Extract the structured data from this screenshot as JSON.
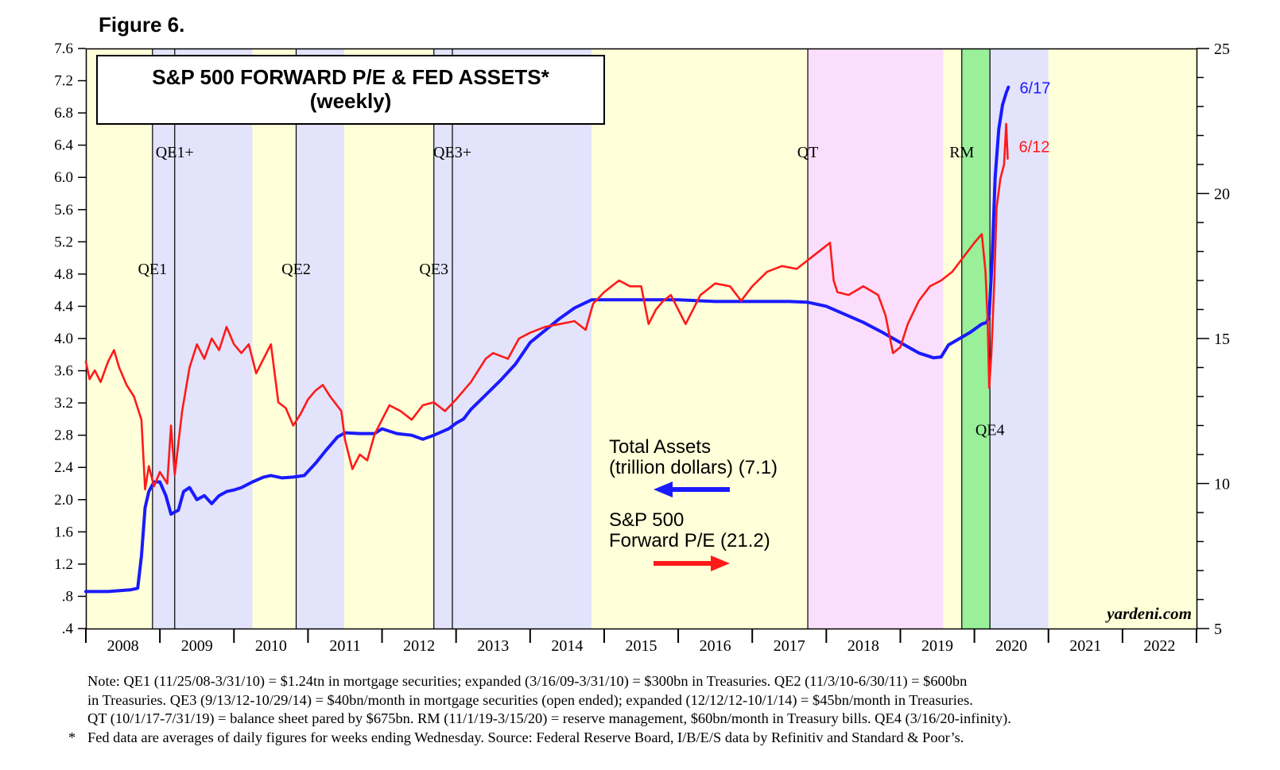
{
  "figure_label": "Figure 6.",
  "notes": [
    "Note: QE1 (11/25/08-3/31/10) = $1.24tn in mortgage securities; expanded (3/16/09-3/31/10) = $300bn in Treasuries. QE2 (11/3/10-6/30/11) = $600bn",
    "in Treasuries. QE3 (9/13/12-10/29/14) = $40bn/month in mortgage securities (open ended); expanded (12/12/12-10/1/14) = $45bn/month in Treasuries.",
    "QT (10/1/17-7/31/19) = balance sheet pared by $675bn. RM (11/1/19-3/15/20) = reserve management, $60bn/month in Treasury bills. QE4 (3/16/20-infinity)."
  ],
  "footnote_marker": "*",
  "footnote": "Fed data are averages of daily figures for weeks ending Wednesday. Source: Federal Reserve Board, I/B/E/S data by Refinitiv and Standard & Poor’s.",
  "colors": {
    "assets": "#1a1aff",
    "pe": "#ff1a1a",
    "yellow_band": "#ffffd9",
    "blue_band": "#e3e3fb",
    "pink_band": "#fbdefb",
    "green_band": "#99f099"
  },
  "chart_data": {
    "type": "line",
    "title": "S&P 500 FORWARD P/E & FED ASSETS*",
    "subtitle": "(weekly)",
    "watermark": "yardeni.com",
    "x_ticks": [
      "2008",
      "2009",
      "2010",
      "2011",
      "2012",
      "2013",
      "2014",
      "2015",
      "2016",
      "2017",
      "2018",
      "2019",
      "2020",
      "2021",
      "2022"
    ],
    "xlim": [
      2008.0,
      2023.0
    ],
    "y_left": {
      "lim": [
        0.4,
        7.6
      ],
      "ticks": [
        7.6,
        7.2,
        6.8,
        6.4,
        6.0,
        5.6,
        5.2,
        4.8,
        4.4,
        4.0,
        3.6,
        3.2,
        2.8,
        2.4,
        2.0,
        1.6,
        1.2,
        0.8,
        0.4
      ],
      "tick_labels": [
        "7.6",
        "7.2",
        "6.8",
        "6.4",
        "6.0",
        "5.6",
        "5.2",
        "4.8",
        "4.4",
        "4.0",
        "3.6",
        "3.2",
        "2.8",
        "2.4",
        "2.0",
        "1.6",
        "1.2",
        ".8",
        ".4"
      ]
    },
    "y_right": {
      "lim": [
        5,
        25
      ],
      "ticks": [
        25,
        20,
        15,
        10,
        5
      ],
      "tick_labels": [
        "25",
        "20",
        "15",
        "10",
        "5"
      ]
    },
    "periods": [
      {
        "start": 2008.0,
        "end": 2008.9,
        "color": "yellow"
      },
      {
        "start": 2008.9,
        "end": 2010.25,
        "color": "blue"
      },
      {
        "start": 2010.25,
        "end": 2010.84,
        "color": "yellow"
      },
      {
        "start": 2010.84,
        "end": 2011.49,
        "color": "blue"
      },
      {
        "start": 2011.49,
        "end": 2012.7,
        "color": "yellow"
      },
      {
        "start": 2012.7,
        "end": 2014.83,
        "color": "blue"
      },
      {
        "start": 2014.83,
        "end": 2017.75,
        "color": "yellow"
      },
      {
        "start": 2017.75,
        "end": 2019.58,
        "color": "pink"
      },
      {
        "start": 2019.58,
        "end": 2019.83,
        "color": "yellow"
      },
      {
        "start": 2019.83,
        "end": 2020.21,
        "color": "green"
      },
      {
        "start": 2020.21,
        "end": 2021.0,
        "color": "blue"
      },
      {
        "start": 2021.0,
        "end": 2023.0,
        "color": "yellow"
      }
    ],
    "events": [
      {
        "label": "QE1",
        "x": 2008.9,
        "label_y": 4.8
      },
      {
        "label": "QE1+",
        "x": 2009.2,
        "label_y": 6.25
      },
      {
        "label": "QE2",
        "x": 2010.84,
        "label_y": 4.8
      },
      {
        "label": "QE3",
        "x": 2012.7,
        "label_y": 4.8
      },
      {
        "label": "QE3+",
        "x": 2012.95,
        "label_y": 6.25
      },
      {
        "label": "QT",
        "x": 2017.75,
        "label_y": 6.25
      },
      {
        "label": "RM",
        "x": 2019.83,
        "label_y": 6.25
      },
      {
        "label": "QE4",
        "x": 2020.21,
        "label_y": 2.8
      }
    ],
    "series": [
      {
        "name": "Total Assets",
        "legend": [
          "Total Assets",
          "(trillion dollars) (7.1)"
        ],
        "axis": "left",
        "color": "#1a1aff",
        "end_label": "6/17",
        "points": [
          [
            2008.0,
            0.86
          ],
          [
            2008.3,
            0.86
          ],
          [
            2008.6,
            0.88
          ],
          [
            2008.7,
            0.9
          ],
          [
            2008.75,
            1.3
          ],
          [
            2008.8,
            1.9
          ],
          [
            2008.85,
            2.1
          ],
          [
            2008.92,
            2.22
          ],
          [
            2009.0,
            2.22
          ],
          [
            2009.08,
            2.05
          ],
          [
            2009.15,
            1.82
          ],
          [
            2009.25,
            1.87
          ],
          [
            2009.32,
            2.1
          ],
          [
            2009.4,
            2.15
          ],
          [
            2009.5,
            2.0
          ],
          [
            2009.6,
            2.05
          ],
          [
            2009.7,
            1.95
          ],
          [
            2009.8,
            2.05
          ],
          [
            2009.9,
            2.1
          ],
          [
            2010.0,
            2.12
          ],
          [
            2010.1,
            2.15
          ],
          [
            2010.25,
            2.22
          ],
          [
            2010.4,
            2.28
          ],
          [
            2010.5,
            2.3
          ],
          [
            2010.65,
            2.27
          ],
          [
            2010.8,
            2.28
          ],
          [
            2010.95,
            2.3
          ],
          [
            2011.1,
            2.45
          ],
          [
            2011.25,
            2.62
          ],
          [
            2011.4,
            2.78
          ],
          [
            2011.5,
            2.83
          ],
          [
            2011.7,
            2.82
          ],
          [
            2011.9,
            2.82
          ],
          [
            2012.0,
            2.88
          ],
          [
            2012.2,
            2.82
          ],
          [
            2012.4,
            2.8
          ],
          [
            2012.55,
            2.75
          ],
          [
            2012.7,
            2.8
          ],
          [
            2012.9,
            2.88
          ],
          [
            2013.0,
            2.95
          ],
          [
            2013.1,
            3.0
          ],
          [
            2013.2,
            3.12
          ],
          [
            2013.4,
            3.3
          ],
          [
            2013.6,
            3.48
          ],
          [
            2013.8,
            3.68
          ],
          [
            2014.0,
            3.95
          ],
          [
            2014.2,
            4.1
          ],
          [
            2014.4,
            4.25
          ],
          [
            2014.6,
            4.38
          ],
          [
            2014.83,
            4.48
          ],
          [
            2015.0,
            4.48
          ],
          [
            2015.5,
            4.48
          ],
          [
            2016.0,
            4.48
          ],
          [
            2016.5,
            4.46
          ],
          [
            2017.0,
            4.46
          ],
          [
            2017.5,
            4.46
          ],
          [
            2017.75,
            4.45
          ],
          [
            2018.0,
            4.4
          ],
          [
            2018.25,
            4.3
          ],
          [
            2018.5,
            4.2
          ],
          [
            2018.75,
            4.08
          ],
          [
            2019.0,
            3.95
          ],
          [
            2019.25,
            3.82
          ],
          [
            2019.45,
            3.76
          ],
          [
            2019.55,
            3.77
          ],
          [
            2019.65,
            3.92
          ],
          [
            2019.8,
            4.0
          ],
          [
            2019.95,
            4.08
          ],
          [
            2020.1,
            4.18
          ],
          [
            2020.17,
            4.2
          ],
          [
            2020.2,
            4.3
          ],
          [
            2020.24,
            5.0
          ],
          [
            2020.28,
            6.0
          ],
          [
            2020.33,
            6.6
          ],
          [
            2020.38,
            6.9
          ],
          [
            2020.43,
            7.05
          ],
          [
            2020.46,
            7.12
          ]
        ]
      },
      {
        "name": "S&P 500 Forward P/E",
        "legend": [
          "S&P 500",
          "Forward P/E (21.2)"
        ],
        "axis": "right",
        "color": "#ff1a1a",
        "end_label": "6/12",
        "points": [
          [
            2008.0,
            14.2
          ],
          [
            2008.05,
            13.6
          ],
          [
            2008.12,
            13.9
          ],
          [
            2008.2,
            13.5
          ],
          [
            2008.3,
            14.2
          ],
          [
            2008.38,
            14.6
          ],
          [
            2008.45,
            14.0
          ],
          [
            2008.55,
            13.4
          ],
          [
            2008.65,
            13.0
          ],
          [
            2008.75,
            12.2
          ],
          [
            2008.8,
            9.8
          ],
          [
            2008.85,
            10.6
          ],
          [
            2008.92,
            9.9
          ],
          [
            2009.0,
            10.4
          ],
          [
            2009.1,
            10.0
          ],
          [
            2009.15,
            12.0
          ],
          [
            2009.2,
            10.3
          ],
          [
            2009.3,
            12.5
          ],
          [
            2009.4,
            14.0
          ],
          [
            2009.5,
            14.8
          ],
          [
            2009.6,
            14.3
          ],
          [
            2009.7,
            15.0
          ],
          [
            2009.8,
            14.6
          ],
          [
            2009.9,
            15.4
          ],
          [
            2010.0,
            14.8
          ],
          [
            2010.1,
            14.5
          ],
          [
            2010.2,
            14.8
          ],
          [
            2010.3,
            13.8
          ],
          [
            2010.4,
            14.3
          ],
          [
            2010.5,
            14.8
          ],
          [
            2010.6,
            12.8
          ],
          [
            2010.7,
            12.6
          ],
          [
            2010.8,
            12.0
          ],
          [
            2010.9,
            12.4
          ],
          [
            2011.0,
            12.9
          ],
          [
            2011.1,
            13.2
          ],
          [
            2011.2,
            13.4
          ],
          [
            2011.3,
            13.0
          ],
          [
            2011.45,
            12.5
          ],
          [
            2011.5,
            11.5
          ],
          [
            2011.6,
            10.5
          ],
          [
            2011.7,
            11.0
          ],
          [
            2011.8,
            10.8
          ],
          [
            2011.9,
            11.7
          ],
          [
            2012.0,
            12.2
          ],
          [
            2012.1,
            12.7
          ],
          [
            2012.25,
            12.5
          ],
          [
            2012.4,
            12.2
          ],
          [
            2012.55,
            12.7
          ],
          [
            2012.7,
            12.8
          ],
          [
            2012.85,
            12.5
          ],
          [
            2013.0,
            12.9
          ],
          [
            2013.2,
            13.5
          ],
          [
            2013.4,
            14.3
          ],
          [
            2013.5,
            14.5
          ],
          [
            2013.7,
            14.3
          ],
          [
            2013.85,
            15.0
          ],
          [
            2014.0,
            15.2
          ],
          [
            2014.2,
            15.4
          ],
          [
            2014.4,
            15.5
          ],
          [
            2014.6,
            15.6
          ],
          [
            2014.75,
            15.3
          ],
          [
            2014.85,
            16.2
          ],
          [
            2015.0,
            16.6
          ],
          [
            2015.2,
            17.0
          ],
          [
            2015.35,
            16.8
          ],
          [
            2015.5,
            16.8
          ],
          [
            2015.6,
            15.5
          ],
          [
            2015.7,
            16.0
          ],
          [
            2015.8,
            16.3
          ],
          [
            2015.9,
            16.5
          ],
          [
            2016.1,
            15.5
          ],
          [
            2016.3,
            16.5
          ],
          [
            2016.5,
            16.9
          ],
          [
            2016.7,
            16.8
          ],
          [
            2016.85,
            16.3
          ],
          [
            2017.0,
            16.8
          ],
          [
            2017.2,
            17.3
          ],
          [
            2017.4,
            17.5
          ],
          [
            2017.6,
            17.4
          ],
          [
            2017.8,
            17.8
          ],
          [
            2018.0,
            18.2
          ],
          [
            2018.05,
            18.3
          ],
          [
            2018.1,
            17.0
          ],
          [
            2018.15,
            16.6
          ],
          [
            2018.3,
            16.5
          ],
          [
            2018.5,
            16.8
          ],
          [
            2018.7,
            16.5
          ],
          [
            2018.8,
            15.8
          ],
          [
            2018.9,
            14.5
          ],
          [
            2019.0,
            14.7
          ],
          [
            2019.1,
            15.5
          ],
          [
            2019.25,
            16.3
          ],
          [
            2019.4,
            16.8
          ],
          [
            2019.55,
            17.0
          ],
          [
            2019.7,
            17.3
          ],
          [
            2019.85,
            17.8
          ],
          [
            2020.0,
            18.3
          ],
          [
            2020.1,
            18.6
          ],
          [
            2020.15,
            17.3
          ],
          [
            2020.18,
            15.5
          ],
          [
            2020.2,
            13.3
          ],
          [
            2020.23,
            14.5
          ],
          [
            2020.27,
            17.0
          ],
          [
            2020.3,
            19.5
          ],
          [
            2020.35,
            20.5
          ],
          [
            2020.4,
            21.0
          ],
          [
            2020.43,
            22.4
          ],
          [
            2020.45,
            21.2
          ]
        ]
      }
    ]
  }
}
